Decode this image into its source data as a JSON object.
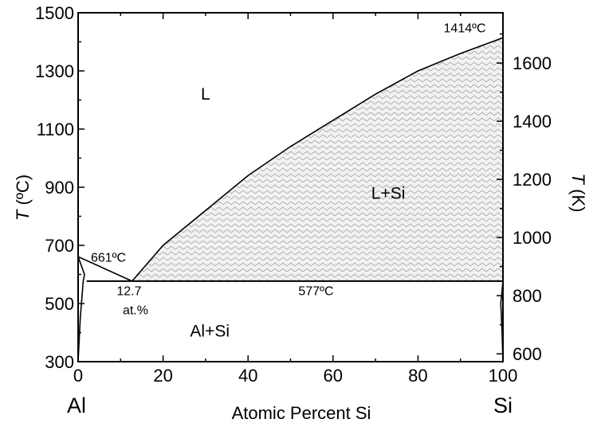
{
  "chart_data": {
    "type": "line",
    "title": "",
    "xlabel": "Atomic Percent Si",
    "ylabel_italic": "T",
    "ylabel_rest": " (ºC)",
    "y2label_italic": "T",
    "y2label_rest": " (K)",
    "xlim": [
      0,
      100
    ],
    "ylim": [
      300,
      1500
    ],
    "y2lim": [
      573,
      1773
    ],
    "x_ticks": [
      0,
      20,
      40,
      60,
      80,
      100
    ],
    "y_ticks": [
      300,
      500,
      700,
      900,
      1100,
      1300,
      1500
    ],
    "y2_ticks": [
      600,
      800,
      1000,
      1200,
      1400,
      1600
    ],
    "x_end_labels": {
      "left": "Al",
      "right": "Si"
    },
    "grid": false,
    "series": [
      {
        "role": "liquidus-al",
        "x": [
          0,
          12.7
        ],
        "y": [
          661,
          577
        ]
      },
      {
        "role": "liquidus-si",
        "x": [
          12.7,
          20,
          30,
          40,
          50,
          60,
          70,
          80,
          90,
          100
        ],
        "y": [
          577,
          700,
          820,
          940,
          1040,
          1130,
          1220,
          1300,
          1360,
          1414
        ]
      },
      {
        "role": "eutectic",
        "x": [
          2,
          100
        ],
        "y": [
          577,
          577
        ]
      },
      {
        "role": "solvus-al",
        "x": [
          0,
          1.5,
          1.2,
          0.5,
          0
        ],
        "y": [
          661,
          600,
          577,
          450,
          300
        ]
      },
      {
        "role": "solvus-si",
        "x": [
          100,
          99.5,
          99.8,
          100
        ],
        "y": [
          577,
          500,
          400,
          300
        ]
      }
    ],
    "shaded_region": "L+Si",
    "regions": [
      {
        "label": "L",
        "x": 30,
        "y": 1220
      },
      {
        "label": "L+Si",
        "x": 73,
        "y": 880
      },
      {
        "label": "Al+Si",
        "x": 31,
        "y": 405
      }
    ],
    "annotations": [
      {
        "label": "661ºC",
        "x": 3,
        "y": 660
      },
      {
        "label": "12.7",
        "x": 12,
        "y": 545
      },
      {
        "label": "at.%",
        "x": 13.5,
        "y": 480
      },
      {
        "label": "577ºC",
        "x": 56,
        "y": 545
      },
      {
        "label": "1414ºC",
        "x": 91,
        "y": 1450
      }
    ],
    "colors": {
      "shade_fill": "#f2f2f2",
      "shade_hatch": "#b0b0b0",
      "line": "#000000"
    }
  }
}
